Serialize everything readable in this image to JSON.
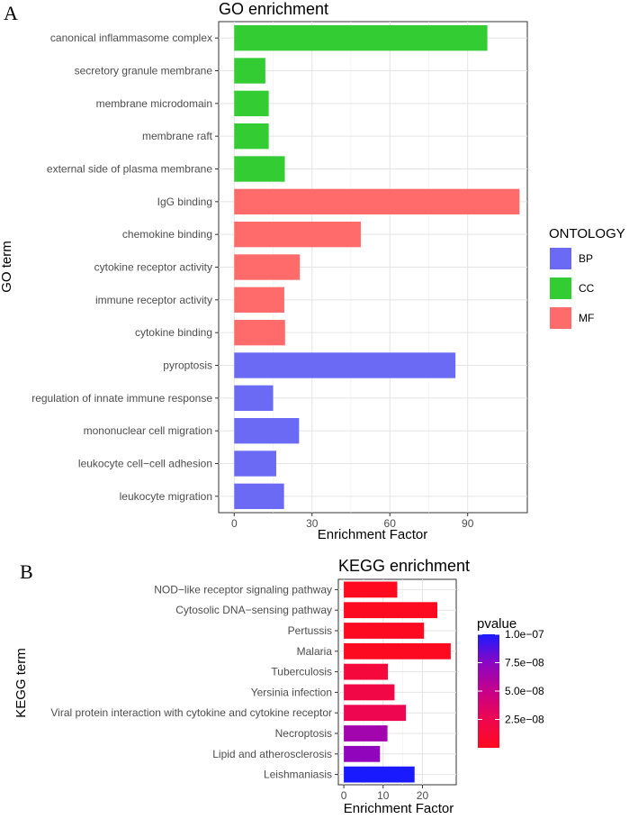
{
  "chart_data": [
    {
      "panel": "A",
      "type": "bar",
      "orientation": "horizontal",
      "title": "GO enrichment",
      "xlabel": "Enrichment Factor",
      "ylabel": "GO term",
      "xlim": [
        -6,
        113
      ],
      "xticks": [
        0,
        30,
        60,
        90
      ],
      "grid": true,
      "legend": {
        "title": "ONTOLOGY",
        "position": "right",
        "items": [
          {
            "label": "BP",
            "color": "#6a6af4"
          },
          {
            "label": "CC",
            "color": "#33cc33"
          },
          {
            "label": "MF",
            "color": "#ff6b6b"
          }
        ]
      },
      "categories": [
        "canonical inflammasome complex",
        "secretory granule membrane",
        "membrane microdomain",
        "membrane raft",
        "external side of plasma membrane",
        "IgG binding",
        "chemokine binding",
        "cytokine receptor activity",
        "immune receptor activity",
        "cytokine binding",
        "pyroptosis",
        "regulation of innate immune response",
        "mononuclear cell migration",
        "leukocyte cell−cell adhesion",
        "leukocyte migration"
      ],
      "values": [
        97.6,
        12,
        13.3,
        13.3,
        19.5,
        110,
        48.8,
        25.3,
        19.3,
        19.6,
        85.3,
        15,
        25,
        16.2,
        19.2
      ],
      "groups": [
        "CC",
        "CC",
        "CC",
        "CC",
        "CC",
        "MF",
        "MF",
        "MF",
        "MF",
        "MF",
        "BP",
        "BP",
        "BP",
        "BP",
        "BP"
      ]
    },
    {
      "panel": "B",
      "type": "bar",
      "orientation": "horizontal",
      "title": "KEGG enrichment",
      "xlabel": "Enrichment Factor",
      "ylabel": "KEGG term",
      "xlim": [
        -1.4,
        28.6
      ],
      "xticks": [
        0,
        10,
        20
      ],
      "grid": true,
      "legend": {
        "title": "pvalue",
        "position": "right",
        "type": "colorbar",
        "range": [
          0,
          1e-07
        ],
        "ticks": [
          {
            "value": 2.5e-08,
            "label": "2.5e−08"
          },
          {
            "value": 5e-08,
            "label": "5.0e−08"
          },
          {
            "value": 7.5e-08,
            "label": "7.5e−08"
          },
          {
            "value": 1e-07,
            "label": "1.0e−07"
          }
        ],
        "low_color": "#ff0a1e",
        "high_color": "#1a1aff"
      },
      "categories": [
        "NOD−like receptor signaling pathway",
        "Cytosolic DNA−sensing pathway",
        "Pertussis",
        "Malaria",
        "Tuberculosis",
        "Yersinia infection",
        "Viral protein interaction with cytokine and cytokine receptor",
        "Necroptosis",
        "Lipid and atherosclerosis",
        "Leishmaniasis"
      ],
      "values": [
        13.6,
        23.8,
        20.4,
        27.2,
        11.2,
        12.9,
        15.8,
        11.1,
        9.2,
        18
      ],
      "pvalues": [
        5e-10,
        1e-09,
        1e-09,
        1e-09,
        1.5e-08,
        2e-08,
        2.5e-08,
        6.5e-08,
        7.2e-08,
        1e-07
      ]
    }
  ],
  "panels": {
    "a_letter": "A",
    "b_letter": "B"
  }
}
